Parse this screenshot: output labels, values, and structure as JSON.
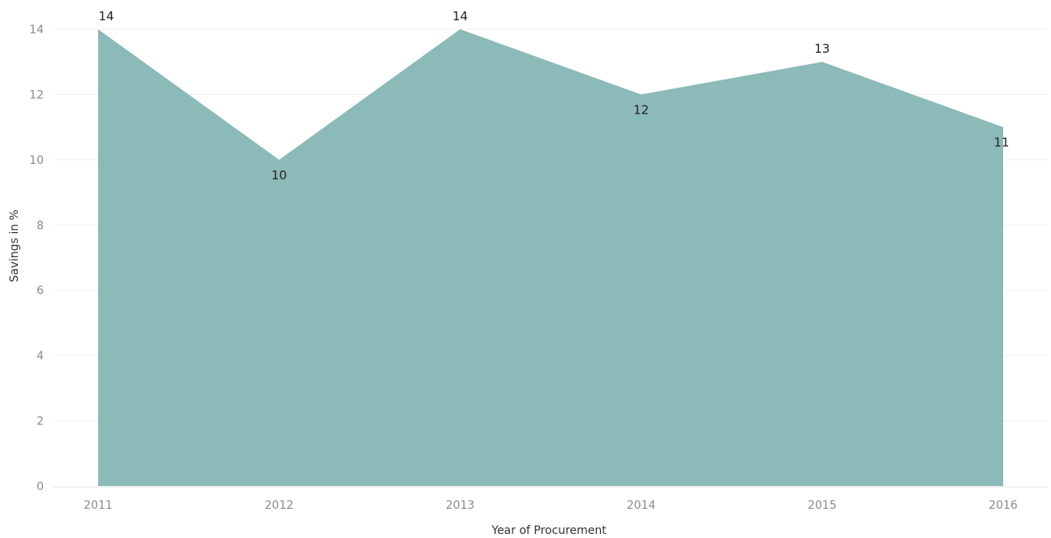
{
  "chart_data": {
    "type": "area",
    "title": "",
    "xlabel": "Year of Procurement",
    "ylabel": "Savings in %",
    "categories": [
      "2011",
      "2012",
      "2013",
      "2014",
      "2015",
      "2016"
    ],
    "series": [
      {
        "values": [
          14,
          10,
          14,
          12,
          13,
          11
        ],
        "color": "#8bbab8"
      }
    ],
    "data_labels": [
      "14",
      "10",
      "14",
      "12",
      "13",
      "11"
    ],
    "y_ticks": [
      "0",
      "2",
      "4",
      "6",
      "8",
      "10",
      "12",
      "14"
    ],
    "ylim": [
      0,
      14
    ],
    "grid": true,
    "legend": "none"
  }
}
